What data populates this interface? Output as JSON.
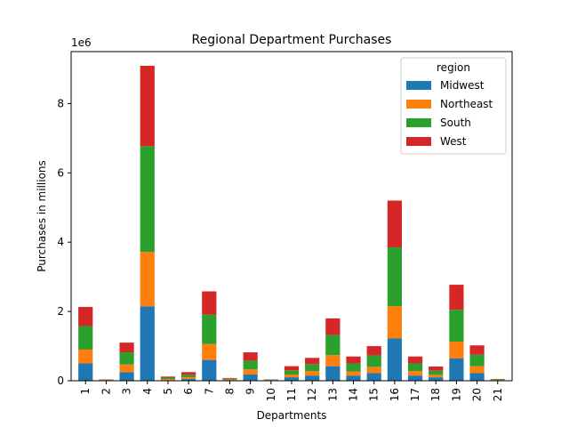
{
  "chart_data": {
    "type": "bar",
    "stacked": true,
    "title": "Regional Department Purchases",
    "xlabel": "Departments",
    "ylabel": "Purchases in millions",
    "y_offset_label": "1e6",
    "ylim": [
      0,
      9.5
    ],
    "yticks": [
      0,
      2,
      4,
      6,
      8
    ],
    "grid": false,
    "legend_title": "region",
    "legend_position": "top-right",
    "categories": [
      "1",
      "2",
      "3",
      "4",
      "5",
      "6",
      "7",
      "8",
      "9",
      "10",
      "11",
      "12",
      "13",
      "14",
      "15",
      "16",
      "17",
      "18",
      "19",
      "20",
      "21"
    ],
    "series": [
      {
        "name": "Midwest",
        "color": "#1f77b4",
        "values": [
          0.5,
          0.01,
          0.25,
          2.15,
          0.02,
          0.05,
          0.6,
          0.02,
          0.18,
          0.01,
          0.1,
          0.15,
          0.42,
          0.15,
          0.22,
          1.22,
          0.15,
          0.1,
          0.65,
          0.22,
          0.01
        ]
      },
      {
        "name": "Northeast",
        "color": "#ff7f0e",
        "values": [
          0.4,
          0.01,
          0.22,
          1.57,
          0.03,
          0.05,
          0.46,
          0.02,
          0.15,
          0.01,
          0.08,
          0.13,
          0.32,
          0.12,
          0.18,
          0.93,
          0.13,
          0.07,
          0.48,
          0.2,
          0.01
        ]
      },
      {
        "name": "South",
        "color": "#2ca02c",
        "values": [
          0.68,
          0.01,
          0.35,
          3.05,
          0.04,
          0.07,
          0.85,
          0.02,
          0.25,
          0.01,
          0.12,
          0.2,
          0.58,
          0.23,
          0.33,
          1.7,
          0.22,
          0.12,
          0.92,
          0.33,
          0.02
        ]
      },
      {
        "name": "West",
        "color": "#d62728",
        "values": [
          0.55,
          0.01,
          0.28,
          2.32,
          0.03,
          0.08,
          0.67,
          0.02,
          0.24,
          0.01,
          0.12,
          0.18,
          0.48,
          0.2,
          0.27,
          1.35,
          0.2,
          0.12,
          0.72,
          0.27,
          0.01
        ]
      }
    ]
  }
}
